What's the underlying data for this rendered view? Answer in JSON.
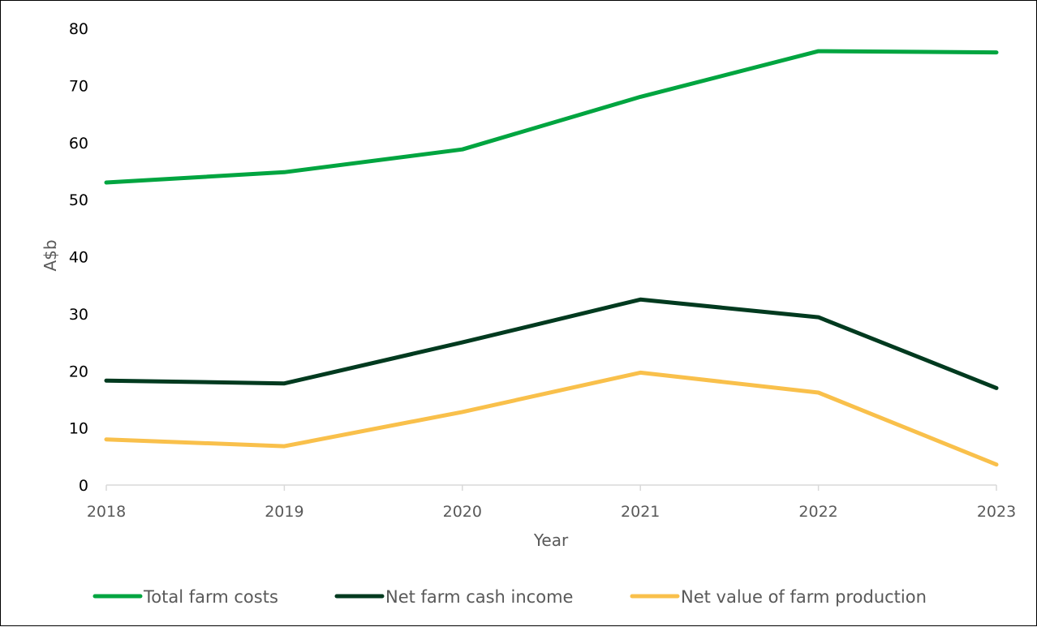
{
  "chart_data": {
    "type": "line",
    "categories": [
      "2018",
      "2019",
      "2020",
      "2021",
      "2022",
      "2023"
    ],
    "series": [
      {
        "name": "Total farm costs",
        "color": "#00A540",
        "values": [
          53.0,
          54.8,
          58.8,
          68.0,
          76.0,
          75.8
        ]
      },
      {
        "name": "Net farm cash income",
        "color": "#003A1F",
        "values": [
          18.3,
          17.8,
          25.0,
          32.5,
          29.4,
          17.0
        ]
      },
      {
        "name": "Net value of farm production",
        "color": "#F9C04B",
        "values": [
          8.0,
          6.8,
          12.8,
          19.7,
          16.2,
          3.6
        ]
      }
    ],
    "xlabel": "Year",
    "ylabel": "A$b",
    "ylim": [
      0,
      80
    ],
    "yticks": [
      "0",
      "10",
      "20",
      "30",
      "40",
      "50",
      "60",
      "70",
      "80"
    ],
    "grid": false,
    "legend_position": "bottom"
  }
}
